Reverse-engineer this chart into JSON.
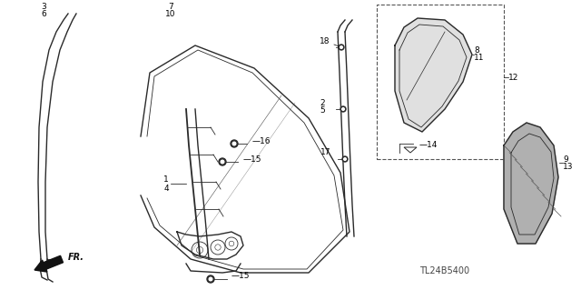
{
  "bg_color": "#ffffff",
  "line_color": "#2a2a2a",
  "part_number_text": "TL24B5400",
  "fig_w": 6.4,
  "fig_h": 3.19,
  "dpi": 100
}
